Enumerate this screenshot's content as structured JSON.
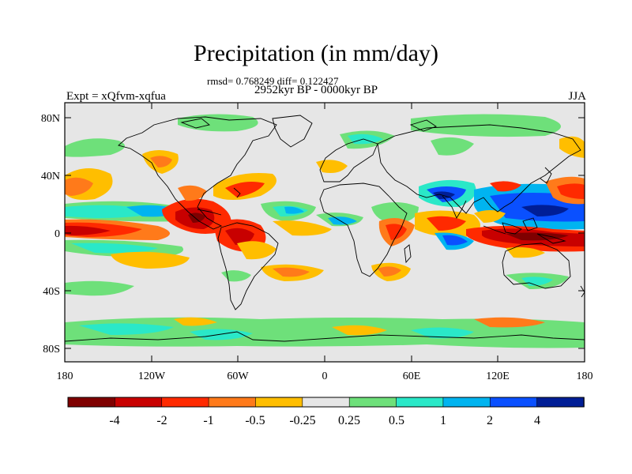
{
  "title": "Precipitation (in mm/day)",
  "stats": "rmsd= 0.768249 diff= 0.122427",
  "period": "2952kyr BP - 0000kyr BP",
  "experiment": "Expt = xQfvm-xqfua",
  "season": "JJA",
  "axes": {
    "lat_ticks": [
      "80N",
      "40N",
      "0",
      "40S",
      "80S"
    ],
    "lon_ticks": [
      "180",
      "120W",
      "60W",
      "0",
      "60E",
      "120E",
      "180"
    ]
  },
  "colorbar": {
    "colors": [
      "#7f0000",
      "#c80000",
      "#ff2a00",
      "#ff7a1a",
      "#ffbe00",
      "#e6e6e6",
      "#6ee07a",
      "#2ae8c8",
      "#00b4f0",
      "#0a50ff",
      "#001e96"
    ],
    "labels": [
      "-4",
      "-2",
      "-1",
      "-0.5",
      "-0.25",
      "0.25",
      "0.5",
      "1",
      "2",
      "4"
    ]
  },
  "colors": {
    "background_field": "#e6e6e6",
    "coastline": "#000000"
  }
}
